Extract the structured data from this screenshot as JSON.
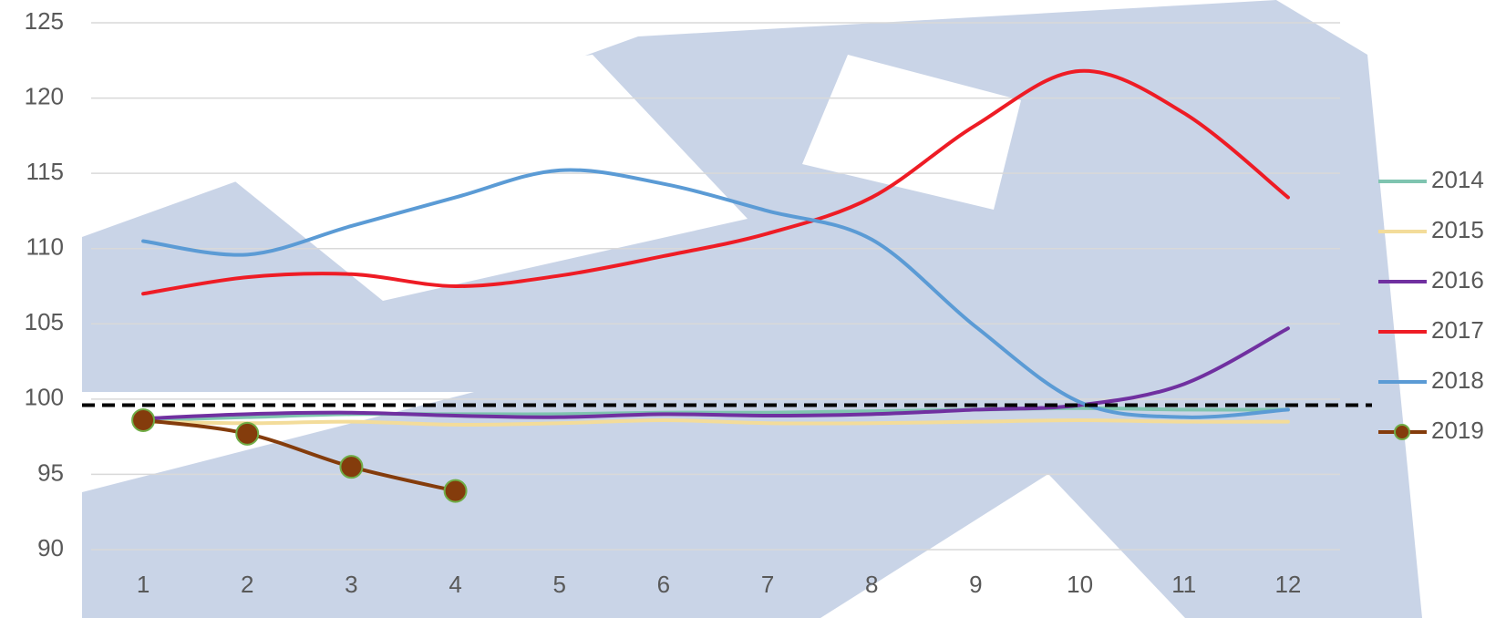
{
  "chart_data": {
    "type": "line",
    "x": [
      1,
      2,
      3,
      4,
      5,
      6,
      7,
      8,
      9,
      10,
      11,
      12
    ],
    "xlim": [
      0.5,
      12.5
    ],
    "xticks": [
      1,
      2,
      3,
      4,
      5,
      6,
      7,
      8,
      9,
      10,
      11,
      12
    ],
    "ylim": [
      90,
      125
    ],
    "yticks": [
      90,
      95,
      100,
      105,
      110,
      115,
      120,
      125
    ],
    "grid": true,
    "legend": "right",
    "smooth": true,
    "reference_value": 99.6,
    "series": [
      {
        "name": "2014",
        "color": "#7fc4b0",
        "values": [
          98.6,
          98.8,
          99.0,
          99.0,
          99.0,
          99.1,
          99.1,
          99.2,
          99.3,
          99.4,
          99.3,
          99.3
        ]
      },
      {
        "name": "2015",
        "color": "#f3dc9a",
        "values": [
          98.5,
          98.4,
          98.5,
          98.3,
          98.4,
          98.6,
          98.4,
          98.4,
          98.5,
          98.6,
          98.5,
          98.5
        ]
      },
      {
        "name": "2016",
        "color": "#7030a0",
        "values": [
          98.7,
          99.0,
          99.1,
          98.9,
          98.8,
          99.0,
          98.9,
          99.0,
          99.3,
          99.6,
          101.0,
          104.7
        ]
      },
      {
        "name": "2017",
        "color": "#ee1c25",
        "values": [
          107.0,
          108.1,
          108.3,
          107.5,
          108.2,
          109.5,
          111.0,
          113.4,
          118.2,
          121.8,
          119.0,
          113.4
        ]
      },
      {
        "name": "2018",
        "color": "#5b9bd5",
        "values": [
          110.5,
          109.6,
          111.5,
          113.4,
          115.2,
          114.3,
          112.5,
          110.6,
          104.8,
          99.8,
          98.8,
          99.3
        ]
      },
      {
        "name": "2019",
        "color": "#843c0c",
        "marker_color": "#70ad47",
        "values": [
          98.6,
          97.7,
          95.5,
          93.9,
          null,
          null,
          null,
          null,
          null,
          null,
          null,
          null
        ]
      }
    ]
  }
}
